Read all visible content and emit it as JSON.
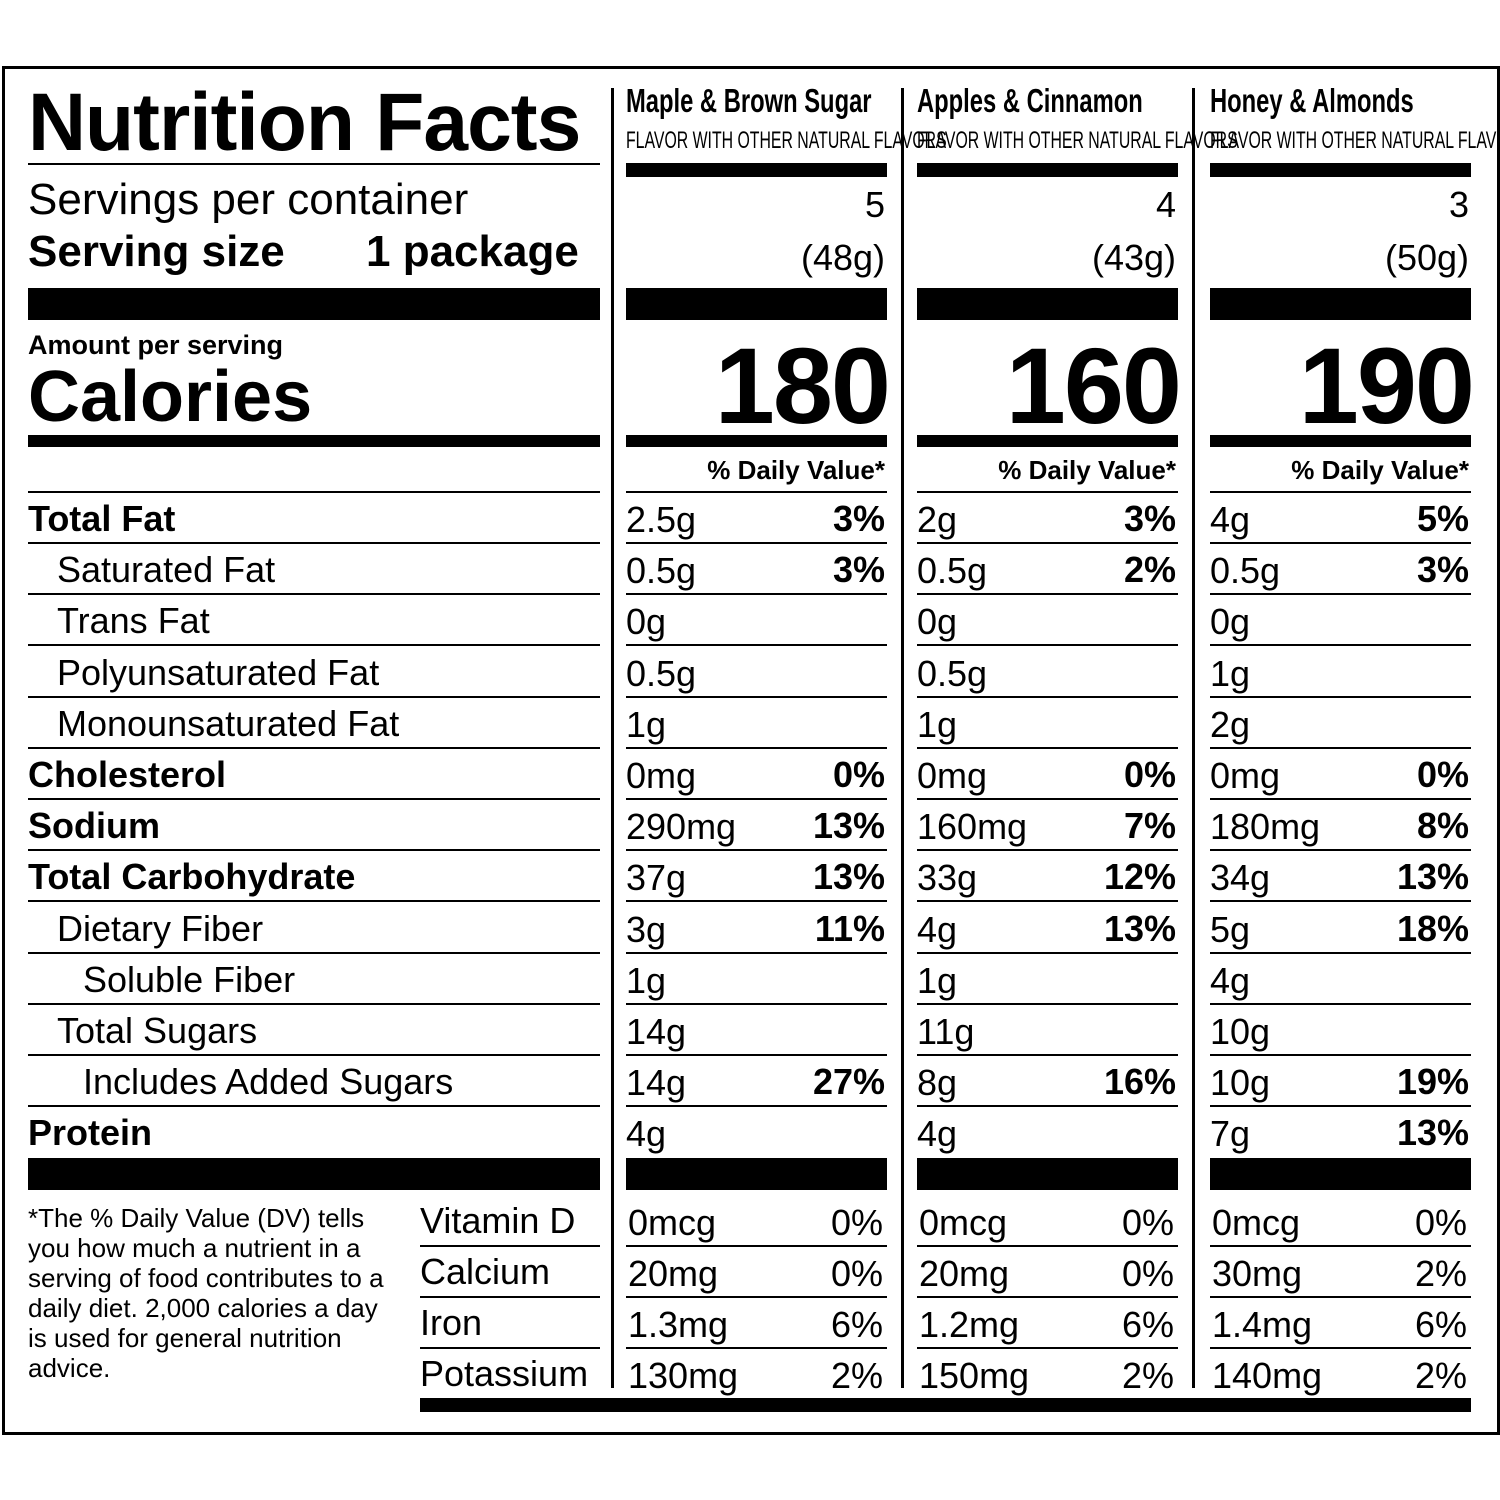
{
  "title": "Nutrition Facts",
  "servings_label": "Servings per container",
  "serving_size_label": "Serving size",
  "serving_size_value": "1 package",
  "amount_per_serving": "Amount per serving",
  "calories_label": "Calories",
  "daily_value_header": "% Daily Value*",
  "columns": [
    {
      "name": "Maple & Brown Sugar",
      "subtitle": "FLAVOR WITH OTHER NATURAL FLAVORS",
      "servings": "5",
      "serving_weight": "(48g)",
      "calories": "180"
    },
    {
      "name": "Apples & Cinnamon",
      "subtitle": "FLAVOR WITH OTHER NATURAL FLAVORS",
      "servings": "4",
      "serving_weight": "(43g)",
      "calories": "160"
    },
    {
      "name": "Honey & Almonds",
      "subtitle": "FLAVOR WITH OTHER NATURAL FLAVORS",
      "servings": "3",
      "serving_weight": "(50g)",
      "calories": "190"
    }
  ],
  "nutrients": [
    {
      "label": "Total Fat",
      "bold": true,
      "indent": 0,
      "values": [
        [
          "2.5g",
          "3%"
        ],
        [
          "2g",
          "3%"
        ],
        [
          "4g",
          "5%"
        ]
      ]
    },
    {
      "label": "Saturated Fat",
      "bold": false,
      "indent": 1,
      "values": [
        [
          "0.5g",
          "3%"
        ],
        [
          "0.5g",
          "2%"
        ],
        [
          "0.5g",
          "3%"
        ]
      ]
    },
    {
      "label": "Trans Fat",
      "bold": false,
      "indent": 1,
      "values": [
        [
          "0g",
          ""
        ],
        [
          "0g",
          ""
        ],
        [
          "0g",
          ""
        ]
      ]
    },
    {
      "label": "Polyunsaturated Fat",
      "bold": false,
      "indent": 1,
      "values": [
        [
          "0.5g",
          ""
        ],
        [
          "0.5g",
          ""
        ],
        [
          "1g",
          ""
        ]
      ]
    },
    {
      "label": "Monounsaturated Fat",
      "bold": false,
      "indent": 1,
      "values": [
        [
          "1g",
          ""
        ],
        [
          "1g",
          ""
        ],
        [
          "2g",
          ""
        ]
      ]
    },
    {
      "label": "Cholesterol",
      "bold": true,
      "indent": 0,
      "values": [
        [
          "0mg",
          "0%"
        ],
        [
          "0mg",
          "0%"
        ],
        [
          "0mg",
          "0%"
        ]
      ]
    },
    {
      "label": "Sodium",
      "bold": true,
      "indent": 0,
      "values": [
        [
          "290mg",
          "13%"
        ],
        [
          "160mg",
          "7%"
        ],
        [
          "180mg",
          "8%"
        ]
      ]
    },
    {
      "label": "Total Carbohydrate",
      "bold": true,
      "indent": 0,
      "values": [
        [
          "37g",
          "13%"
        ],
        [
          "33g",
          "12%"
        ],
        [
          "34g",
          "13%"
        ]
      ]
    },
    {
      "label": "Dietary Fiber",
      "bold": false,
      "indent": 1,
      "values": [
        [
          "3g",
          "11%"
        ],
        [
          "4g",
          "13%"
        ],
        [
          "5g",
          "18%"
        ]
      ]
    },
    {
      "label": "Soluble Fiber",
      "bold": false,
      "indent": 2,
      "values": [
        [
          "1g",
          ""
        ],
        [
          "1g",
          ""
        ],
        [
          "4g",
          ""
        ]
      ]
    },
    {
      "label": "Total Sugars",
      "bold": false,
      "indent": 1,
      "values": [
        [
          "14g",
          ""
        ],
        [
          "11g",
          ""
        ],
        [
          "10g",
          ""
        ]
      ]
    },
    {
      "label": "Includes Added Sugars",
      "bold": false,
      "indent": 2,
      "values": [
        [
          "14g",
          "27%"
        ],
        [
          "8g",
          "16%"
        ],
        [
          "10g",
          "19%"
        ]
      ]
    },
    {
      "label": "Protein",
      "bold": true,
      "indent": 0,
      "values": [
        [
          "4g",
          ""
        ],
        [
          "4g",
          ""
        ],
        [
          "7g",
          "13%"
        ]
      ]
    }
  ],
  "vitamins": [
    {
      "label": "Vitamin D",
      "values": [
        [
          "0mcg",
          "0%"
        ],
        [
          "0mcg",
          "0%"
        ],
        [
          "0mcg",
          "0%"
        ]
      ]
    },
    {
      "label": "Calcium",
      "values": [
        [
          "20mg",
          "0%"
        ],
        [
          "20mg",
          "0%"
        ],
        [
          "30mg",
          "2%"
        ]
      ]
    },
    {
      "label": "Iron",
      "values": [
        [
          "1.3mg",
          "6%"
        ],
        [
          "1.2mg",
          "6%"
        ],
        [
          "1.4mg",
          "6%"
        ]
      ]
    },
    {
      "label": "Potassium",
      "values": [
        [
          "130mg",
          "2%"
        ],
        [
          "150mg",
          "2%"
        ],
        [
          "140mg",
          "2%"
        ]
      ]
    }
  ],
  "footnote": "*The % Daily Value (DV) tells you how much a nutrient in a serving of food contributes to a daily diet. 2,000 calories a day is used for general nutrition advice."
}
